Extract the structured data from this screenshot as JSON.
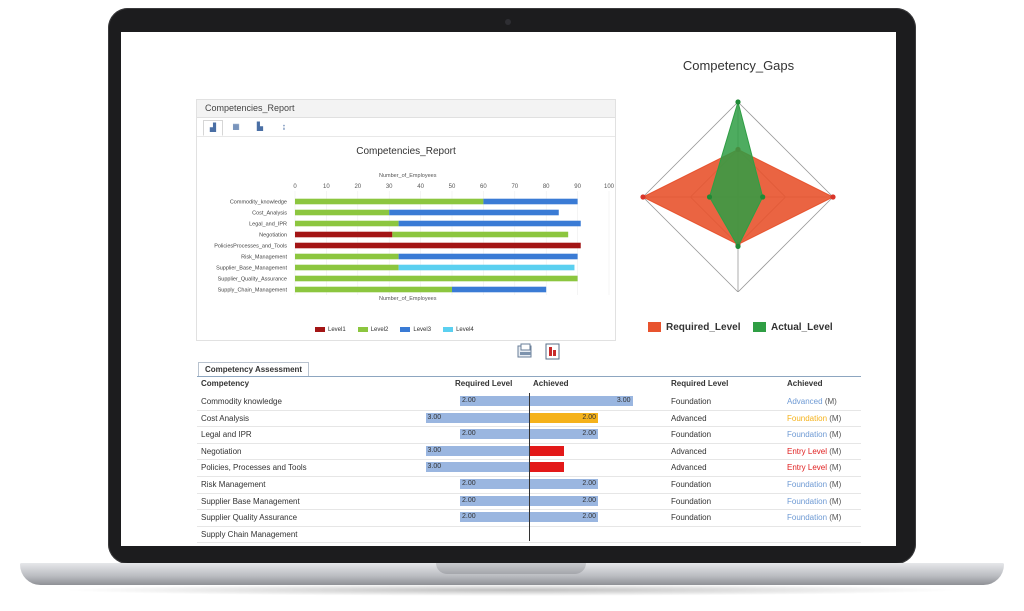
{
  "colors": {
    "level1": "#a31515",
    "level2": "#8cc63f",
    "level3": "#3a7bd5",
    "level4": "#5bd0f0",
    "required_fill": "#e8532e",
    "actual_fill": "#2f9e44",
    "req_bar": "#9ab6e0",
    "foundation_blue": "#6e9ad4",
    "entry_red": "#e02020",
    "orange": "#f5b21b",
    "red_bar": "#e31919"
  },
  "bar_panel": {
    "header": "Competencies_Report",
    "tools": [
      {
        "name": "chart-tool-icon",
        "glyph": "▟"
      },
      {
        "name": "grid-tool-icon",
        "glyph": "▦"
      },
      {
        "name": "print-tool-icon",
        "glyph": "▙"
      },
      {
        "name": "sort-tool-icon",
        "glyph": "↨"
      }
    ],
    "title": "Competencies_Report",
    "axis_label_top": "Number_of_Employees",
    "axis_label_bottom": "Number_of_Employees",
    "legend": [
      "Level1",
      "Level2",
      "Level3",
      "Level4"
    ]
  },
  "chart_data": [
    {
      "type": "bar",
      "orientation": "horizontal",
      "stacked": true,
      "title": "Competencies_Report",
      "xlabel": "Number_of_Employees",
      "xlim": [
        0,
        100
      ],
      "xticks": [
        0,
        10,
        20,
        30,
        40,
        50,
        60,
        70,
        80,
        90,
        100
      ],
      "categories": [
        "Commodity_knowledge",
        "Cost_Analysis",
        "Legal_and_IPR",
        "Negotiation",
        "PoliciesProcesses_and_Tools",
        "Risk_Management",
        "Supplier_Base_Management",
        "Supplier_Quality_Assurance",
        "Supply_Chain_Management"
      ],
      "series": [
        {
          "name": "Level1",
          "values": [
            0,
            0,
            0,
            31,
            91,
            0,
            0,
            0,
            0
          ]
        },
        {
          "name": "Level2",
          "values": [
            60,
            30,
            33,
            56,
            0,
            33,
            33,
            90,
            50
          ]
        },
        {
          "name": "Level3",
          "values": [
            30,
            54,
            58,
            0,
            0,
            57,
            0,
            0,
            30
          ]
        },
        {
          "name": "Level4",
          "values": [
            0,
            0,
            0,
            0,
            0,
            0,
            56,
            0,
            0
          ]
        }
      ],
      "legend_position": "bottom"
    },
    {
      "type": "radar",
      "title": "Competency_Gaps",
      "axes": 4,
      "series": [
        {
          "name": "Required_Level",
          "values": [
            0.5,
            1.0,
            0.5,
            1.0
          ]
        },
        {
          "name": "Actual_Level",
          "values": [
            1.0,
            0.26,
            0.52,
            0.3
          ]
        }
      ],
      "legend_position": "bottom"
    }
  ],
  "radar": {
    "title": "Competency_Gaps",
    "legend": [
      "Required_Level",
      "Actual_Level"
    ]
  },
  "assessment": {
    "tab": "Competency Assessment",
    "headers": {
      "competency": "Competency",
      "required": "Required Level",
      "achieved": "Achieved",
      "required2": "Required Level",
      "achieved2": "Achieved"
    },
    "rows": [
      {
        "name": "Commodity knowledge",
        "req": 2.0,
        "ach": 3.0,
        "req_label": "2.00",
        "ach_label": "3.00",
        "ach_color": "req_bar",
        "required_level": "Foundation",
        "achieved_level": "Advanced",
        "achieved_color": "foundation_blue",
        "suffix": "(M)"
      },
      {
        "name": "Cost Analysis",
        "req": 3.0,
        "ach": 2.0,
        "req_label": "3.00",
        "ach_label": "2.00",
        "ach_color": "orange",
        "required_level": "Advanced",
        "achieved_level": "Foundation",
        "achieved_color": "orange",
        "suffix": "(M)"
      },
      {
        "name": "Legal and IPR",
        "req": 2.0,
        "ach": 2.0,
        "req_label": "2.00",
        "ach_label": "2.00",
        "ach_color": "req_bar",
        "required_level": "Foundation",
        "achieved_level": "Foundation",
        "achieved_color": "foundation_blue",
        "suffix": "(M)"
      },
      {
        "name": "Negotiation",
        "req": 3.0,
        "ach": 1.0,
        "req_label": "3.00",
        "ach_label": "",
        "ach_color": "red_bar",
        "required_level": "Advanced",
        "achieved_level": "Entry Level",
        "achieved_color": "entry_red",
        "suffix": "(M)"
      },
      {
        "name": "Policies, Processes and Tools",
        "req": 3.0,
        "ach": 1.0,
        "req_label": "3.00",
        "ach_label": "",
        "ach_color": "red_bar",
        "required_level": "Advanced",
        "achieved_level": "Entry Level",
        "achieved_color": "entry_red",
        "suffix": "(M)"
      },
      {
        "name": "Risk Management",
        "req": 2.0,
        "ach": 2.0,
        "req_label": "2.00",
        "ach_label": "2.00",
        "ach_color": "req_bar",
        "required_level": "Foundation",
        "achieved_level": "Foundation",
        "achieved_color": "foundation_blue",
        "suffix": "(M)"
      },
      {
        "name": "Supplier Base Management",
        "req": 2.0,
        "ach": 2.0,
        "req_label": "2.00",
        "ach_label": "2.00",
        "ach_color": "req_bar",
        "required_level": "Foundation",
        "achieved_level": "Foundation",
        "achieved_color": "foundation_blue",
        "suffix": "(M)"
      },
      {
        "name": "Supplier Quality Assurance",
        "req": 2.0,
        "ach": 2.0,
        "req_label": "2.00",
        "ach_label": "2.00",
        "ach_color": "req_bar",
        "required_level": "Foundation",
        "achieved_level": "Foundation",
        "achieved_color": "foundation_blue",
        "suffix": "(M)"
      },
      {
        "name": "Supply Chain Management",
        "req": null,
        "ach": null,
        "req_label": "",
        "ach_label": "",
        "ach_color": "req_bar",
        "required_level": "",
        "achieved_level": "",
        "achieved_color": "foundation_blue",
        "suffix": ""
      }
    ]
  },
  "action_icons": [
    "export-icon",
    "pdf-report-icon"
  ]
}
